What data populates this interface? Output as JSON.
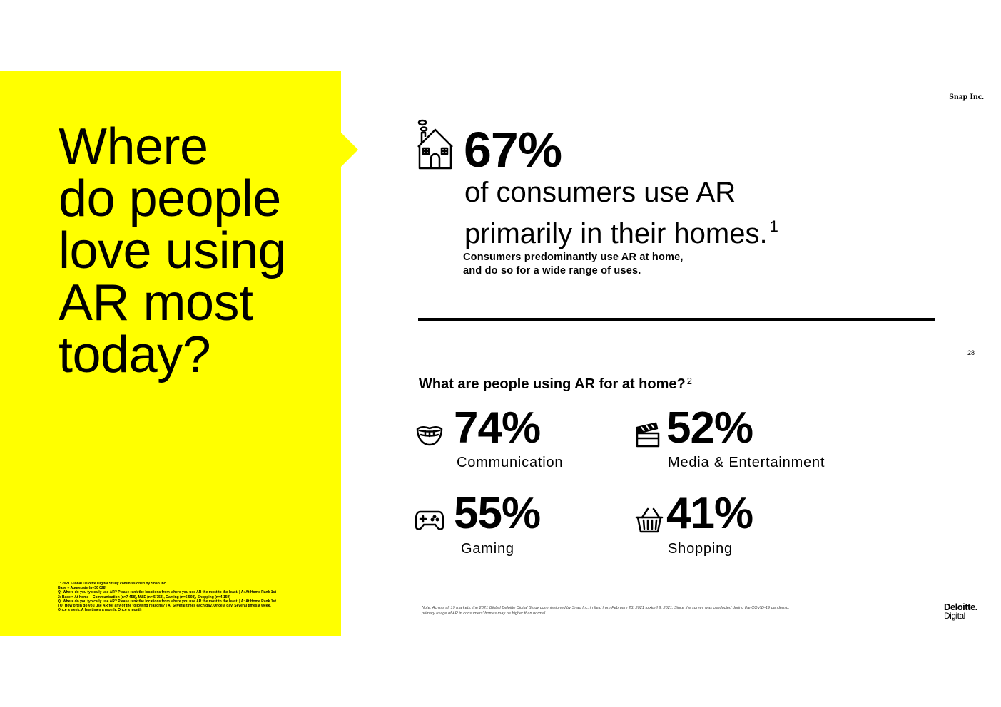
{
  "headline": "Where\ndo people\nlove using\nAR most\ntoday?",
  "brand": "Snap Inc.",
  "page_number": "28",
  "top_stat": {
    "icon": "house-icon",
    "value": "67%",
    "description": "of consumers use AR primarily in their homes.",
    "footnote_ref": "1",
    "subtext_line1": "Consumers predominantly use AR at home,",
    "subtext_line2": "and do so for a wide range of uses."
  },
  "question": {
    "text": "What are people using AR for at home?",
    "footnote_ref": "2"
  },
  "uses": [
    {
      "icon": "smiling-mouth-icon",
      "value": "74%",
      "label": "Communication"
    },
    {
      "icon": "clapperboard-icon",
      "value": "52%",
      "label": "Media & Entertainment"
    },
    {
      "icon": "gamepad-icon",
      "value": "55%",
      "label": "Gaming"
    },
    {
      "icon": "shopping-basket-icon",
      "value": "41%",
      "label": "Shopping"
    }
  ],
  "footnotes": [
    "1: 2021 Global Deloitte Digital Study commissioned by Snap Inc.",
    "Base = Aggregate (n=30 028)",
    "Q: Where do you typically use AR? Please rank the locations from where you use AR the most to the least. | A: At Home Rank 1st",
    "2: Base = At home – Communication (n=7 458), M&E (n= 5,753), Gaming (n=5 508), Shopping (n=4 159)",
    "Q: Where do you typically use AR? Please rank the locations from where you use AR the most to the least. | A: At Home Rank 1st",
    "| Q: How often do you use AR for any of the following reasons? | A: Several times each day, Once a day, Several times a week,",
    "Once a week, A few times a month, Once a month"
  ],
  "note_line1": "Note: Across all 19 markets, the 2021 Global Deloitte Digital Study commissioned by Snap Inc. in field from February 23, 2021 to April 9, 2021. Since the survey was conducted during the COVID-19 pandemic,",
  "note_line2": "primary usage of AR in consumers' homes may be higher than normal",
  "deloitte_line1": "Deloitte.",
  "deloitte_line2": "Digital",
  "colors": {
    "panel_yellow": "#ffff00",
    "text": "#000000"
  }
}
